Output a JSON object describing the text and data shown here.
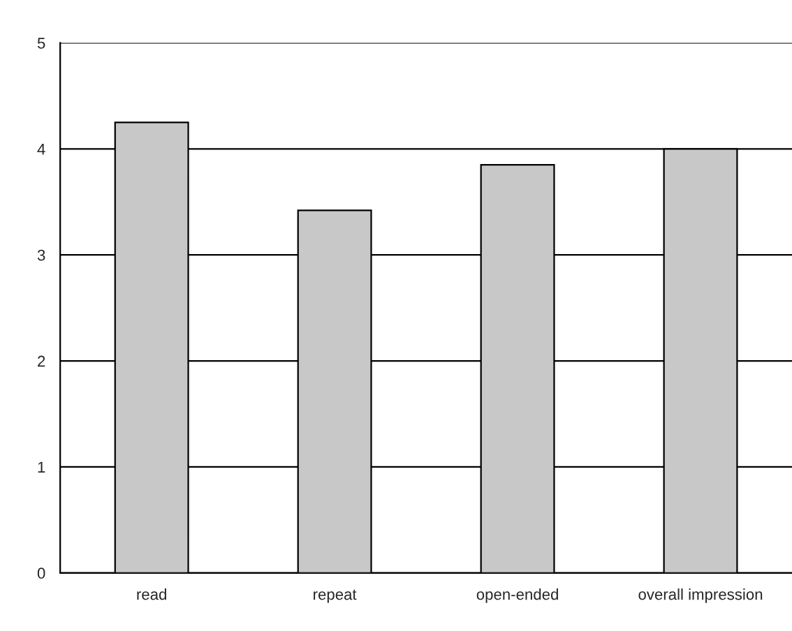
{
  "chart_data": {
    "type": "bar",
    "categories": [
      "read",
      "repeat",
      "open-ended",
      "overall impression"
    ],
    "values": [
      4.25,
      3.42,
      3.85,
      4.0
    ],
    "color": "#c8c8c8",
    "ylim": [
      0,
      5
    ],
    "yticks": [
      0,
      1,
      2,
      3,
      4,
      5
    ],
    "grid": "y"
  }
}
